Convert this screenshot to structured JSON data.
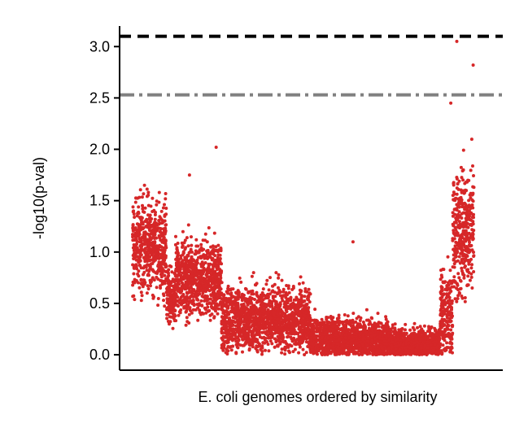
{
  "chart_data": {
    "type": "scatter",
    "title": "",
    "xlabel": "E. coli genomes ordered by similarity",
    "ylabel": "-log10(p-val)",
    "ylim": [
      -0.15,
      3.2
    ],
    "yticks": [
      0.0,
      0.5,
      1.0,
      1.5,
      2.0,
      2.5,
      3.0
    ],
    "ytick_labels": [
      "0.0",
      "0.5",
      "1.0",
      "1.5",
      "2.0",
      "2.5",
      "3.0"
    ],
    "xticks": [],
    "grid": false,
    "legend": "none",
    "point_color": "#d62728",
    "threshold_lines": [
      {
        "y": 3.1,
        "style": "dashed",
        "color": "#000000"
      },
      {
        "y": 2.53,
        "style": "dashdot",
        "color": "#808080"
      }
    ],
    "x_range": [
      0,
      1000
    ],
    "points_summary": "approximately 6000 points; dense red band, values sampled per segment",
    "segments": [
      {
        "x": [
          0,
          95
        ],
        "y_center": 1.05,
        "y_spread": 0.45,
        "y_max": 1.85
      },
      {
        "x": [
          95,
          120
        ],
        "y_center": 0.55,
        "y_spread": 0.25,
        "y_max": 1.0
      },
      {
        "x": [
          120,
          250
        ],
        "y_center": 0.75,
        "y_spread": 0.35,
        "y_max": 1.55
      },
      {
        "x": [
          250,
          350
        ],
        "y_center": 0.35,
        "y_spread": 0.3,
        "y_max": 0.9
      },
      {
        "x": [
          350,
          500
        ],
        "y_center": 0.35,
        "y_spread": 0.3,
        "y_max": 0.95
      },
      {
        "x": [
          500,
          720
        ],
        "y_center": 0.15,
        "y_spread": 0.2,
        "y_max": 0.65
      },
      {
        "x": [
          720,
          865
        ],
        "y_center": 0.1,
        "y_spread": 0.15,
        "y_max": 0.6
      },
      {
        "x": [
          865,
          900
        ],
        "y_center": 0.4,
        "y_spread": 0.5,
        "y_max": 2.0
      },
      {
        "x": [
          900,
          960
        ],
        "y_center": 1.2,
        "y_spread": 0.6,
        "y_max": 3.05
      }
    ],
    "outliers": [
      {
        "x": 235,
        "y": 2.02
      },
      {
        "x": 912,
        "y": 3.05
      },
      {
        "x": 958,
        "y": 2.82
      },
      {
        "x": 895,
        "y": 2.45
      },
      {
        "x": 160,
        "y": 1.75
      },
      {
        "x": 620,
        "y": 1.1
      }
    ]
  }
}
